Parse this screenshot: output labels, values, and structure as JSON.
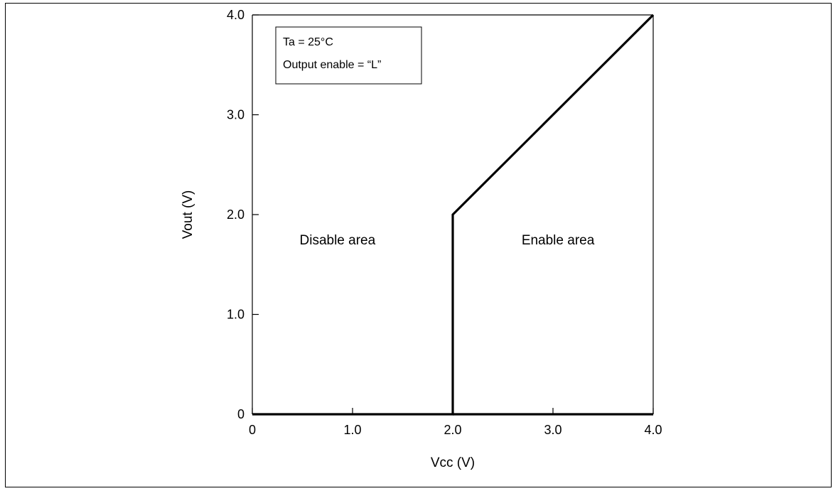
{
  "chart_data": {
    "type": "line",
    "title": "",
    "xlabel": "Vcc  (V)",
    "ylabel": "Vout  (V)",
    "xlim": [
      0,
      4.0
    ],
    "ylim": [
      0,
      4.0
    ],
    "x_ticks": [
      {
        "value": 0,
        "label": "0"
      },
      {
        "value": 1.0,
        "label": "1.0"
      },
      {
        "value": 2.0,
        "label": "2.0"
      },
      {
        "value": 3.0,
        "label": "3.0"
      },
      {
        "value": 4.0,
        "label": "4.0"
      }
    ],
    "y_ticks": [
      {
        "value": 0,
        "label": "0"
      },
      {
        "value": 1.0,
        "label": "1.0"
      },
      {
        "value": 2.0,
        "label": "2.0"
      },
      {
        "value": 3.0,
        "label": "3.0"
      },
      {
        "value": 4.0,
        "label": "4.0"
      }
    ],
    "grid": false,
    "series": [
      {
        "points": [
          {
            "x": 0,
            "y": 0
          },
          {
            "x": 2.0,
            "y": 0
          },
          {
            "x": 2.0,
            "y": 2.0
          },
          {
            "x": 4.0,
            "y": 4.0
          }
        ]
      },
      {
        "points": [
          {
            "x": 2.0,
            "y": 0
          },
          {
            "x": 4.0,
            "y": 0
          }
        ]
      }
    ],
    "annotations": [
      {
        "text": "Disable area",
        "x": 0.85,
        "y": 1.7
      },
      {
        "text": "Enable area",
        "x": 3.05,
        "y": 1.7
      }
    ],
    "conditions_box": {
      "placement": "top-left",
      "lines": [
        "Ta = 25°C",
        "Output enable = “L”"
      ]
    }
  }
}
